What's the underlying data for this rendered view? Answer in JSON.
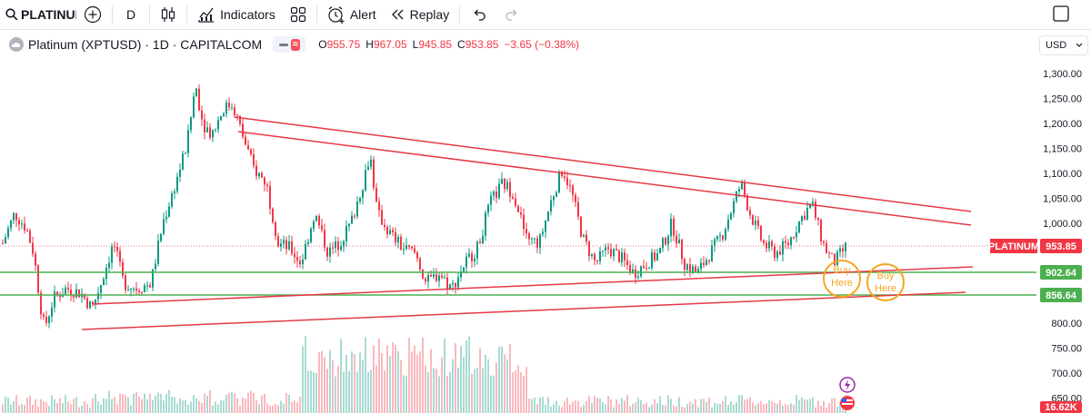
{
  "toolbar": {
    "symbol": "PLATINUM",
    "interval": "D",
    "indicators_label": "Indicators",
    "alert_label": "Alert",
    "replay_label": "Replay"
  },
  "legend": {
    "title": "Platinum (XPTUSD) · 1D · CAPITALCOM",
    "approx_glyph": "≈",
    "open_key": "O",
    "open": "955.75",
    "high_key": "H",
    "high": "967.05",
    "low_key": "L",
    "low": "945.85",
    "close_key": "C",
    "close": "953.85",
    "change": "−3.65 (−0.38%)"
  },
  "currency": "USD",
  "price_axis": {
    "ticks": [
      "1,300.00",
      "1,250.00",
      "1,200.00",
      "1,150.00",
      "1,100.00",
      "1,050.00",
      "1,000.00",
      "800.00",
      "750.00",
      "700.00",
      "650.00"
    ],
    "tick_values": [
      1300,
      1250,
      1200,
      1150,
      1100,
      1050,
      1000,
      800,
      750,
      700,
      650
    ],
    "current_label": "PLATINUM",
    "current_value": "953.85",
    "level_1": "902.64",
    "level_2": "856.64",
    "volume_label": "16.62K"
  },
  "chart_data": {
    "type": "candlestick",
    "symbol": "XPTUSD",
    "timeframe": "1D",
    "last_close": 953.85,
    "support_levels": [
      902.64,
      856.64
    ],
    "annotations": [
      "Buy Here",
      "Buy Here"
    ],
    "trendlines": {
      "upper_channel": [
        [
          1220,
          1020
        ],
        [
          1180,
          1000
        ]
      ],
      "lower_channel": [
        [
          845,
          905
        ],
        [
          790,
          860
        ]
      ]
    },
    "series_color_up": "#089981",
    "series_color_down": "#f23645",
    "volume_visible": true
  },
  "annotations": {
    "buy_1_line1": "Buy",
    "buy_1_line2": "Here",
    "buy_2_line1": "Buy",
    "buy_2_line2": "Here"
  },
  "colors": {
    "up": "#089981",
    "down": "#f23645",
    "trendline": "#e63946",
    "support": "#4caf50",
    "annotation": "#f5a623"
  }
}
